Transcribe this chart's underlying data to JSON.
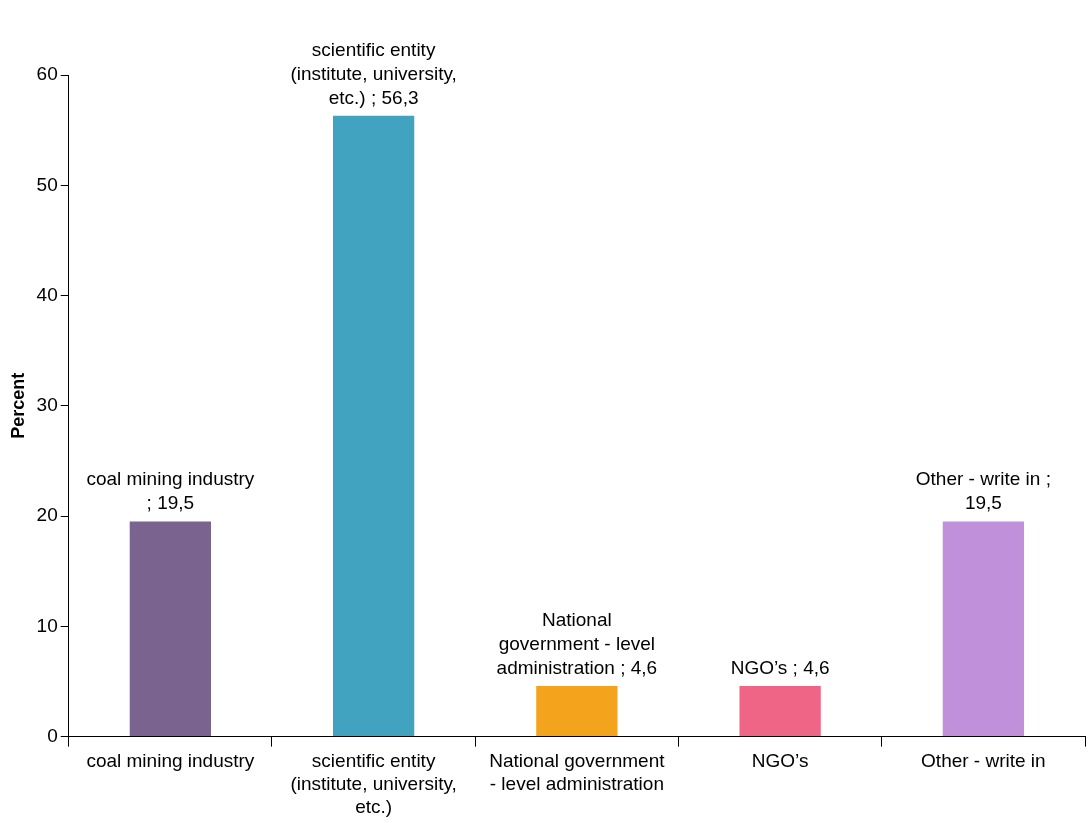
{
  "chart_data": {
    "type": "bar",
    "ylabel": "Percent",
    "categories": [
      "coal mining industry",
      "scientific entity (institute, university, etc.)",
      "National government - level administration",
      "NGO’s",
      "Other - write in"
    ],
    "values": [
      19.5,
      56.3,
      4.6,
      4.6,
      19.5
    ],
    "colors": [
      "#7b6390",
      "#41a3c0",
      "#f4a41c",
      "#ef6585",
      "#c091da"
    ],
    "value_labels": [
      "coal mining industry ; 19,5",
      "scientific entity (institute, university, etc.) ; 56,3",
      "National government - level administration ; 4,6",
      "NGO’s ; 4,6",
      "Other - write in ; 19,5"
    ],
    "ylim": [
      0,
      60
    ],
    "yticks": [
      0,
      10,
      20,
      30,
      40,
      50,
      60
    ],
    "grid": false,
    "legend": false
  }
}
